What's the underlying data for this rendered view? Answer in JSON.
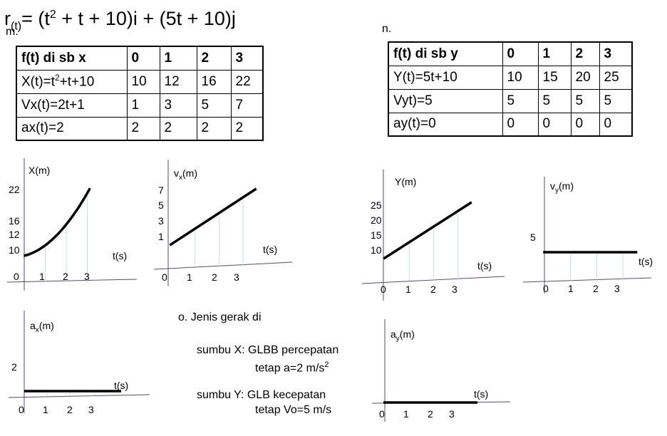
{
  "title": {
    "prefix": "r",
    "sub": "(t)",
    "eq": "= (t",
    "sup": "2",
    "rest": " + t + 10)i + (5t + 10)j"
  },
  "labels": {
    "m": "m.",
    "n": "n."
  },
  "table_x": {
    "header": [
      "f(t) di sb x",
      "0",
      "1",
      "2",
      "3"
    ],
    "rows": [
      {
        "label_main": "X(t)=t",
        "label_sup": "2",
        "label_rest": "+t+10",
        "values": [
          "10",
          "12",
          "16",
          "22"
        ]
      },
      {
        "label": "Vx(t)=2t+1",
        "values": [
          "1",
          "3",
          "5",
          "7"
        ]
      },
      {
        "label": "ax(t)=2",
        "values": [
          "2",
          "2",
          "2",
          "2"
        ]
      }
    ]
  },
  "table_y": {
    "header": [
      "f(t) di sb y",
      "0",
      "1",
      "2",
      "3"
    ],
    "rows": [
      {
        "label": "Y(t)=5t+10",
        "values": [
          "10",
          "15",
          "20",
          "25"
        ]
      },
      {
        "label": "Vyt)=5",
        "values": [
          "5",
          "5",
          "5",
          "5"
        ]
      },
      {
        "label": "ay(t)=0",
        "values": [
          "0",
          "0",
          "0",
          "0"
        ]
      }
    ]
  },
  "plots": {
    "x": {
      "ylabel": "X(m)",
      "xlabel": "t(s)",
      "t": [
        0,
        1,
        2,
        3
      ],
      "values": [
        10,
        12,
        16,
        22
      ],
      "yticks": [
        "22",
        "16",
        "12",
        "10"
      ],
      "xticks": [
        "0",
        "1",
        "2",
        "3"
      ]
    },
    "vx": {
      "ylabel_main": "v",
      "ylabel_sub": "x",
      "ylabel_rest": "(m)",
      "xlabel": "t(s)",
      "t": [
        0,
        1,
        2,
        3
      ],
      "values": [
        1,
        3,
        5,
        7
      ],
      "yticks": [
        "7",
        "5",
        "3",
        "1"
      ],
      "xticks": [
        "0",
        "1",
        "2",
        "3"
      ]
    },
    "y": {
      "ylabel": "Y(m)",
      "xlabel": "t(s)",
      "t": [
        0,
        1,
        2,
        3
      ],
      "values": [
        10,
        15,
        20,
        25
      ],
      "yticks": [
        "25",
        "20",
        "15",
        "10"
      ],
      "xticks": [
        "0",
        "1",
        "2",
        "3"
      ]
    },
    "vy": {
      "ylabel_main": "v",
      "ylabel_sub": "y",
      "ylabel_rest": "(m)",
      "xlabel": "t(s)",
      "t": [
        0,
        1,
        2,
        3
      ],
      "values": [
        5,
        5,
        5,
        5
      ],
      "yticks": [
        "5"
      ],
      "xticks": [
        "0",
        "1",
        "2",
        "3"
      ]
    },
    "ax": {
      "ylabel_main": "a",
      "ylabel_sub": "x",
      "ylabel_rest": "(m)",
      "xlabel": "t(s)",
      "t": [
        0,
        1,
        2,
        3
      ],
      "values": [
        2,
        2,
        2,
        2
      ],
      "yticks": [
        "2"
      ],
      "xticks": [
        "0",
        "1",
        "2",
        "3"
      ]
    },
    "ay": {
      "ylabel_main": "a",
      "ylabel_sub": "y",
      "ylabel_rest": "(m)",
      "xlabel": "t(s)",
      "t": [
        0,
        1,
        2,
        3
      ],
      "values": [
        0,
        0,
        0,
        0
      ],
      "yticks": [],
      "xticks": [
        "0",
        "1",
        "2",
        "3"
      ]
    }
  },
  "motion": {
    "heading": "o. Jenis gerak  di",
    "x_line1": "sumbu X: GLBB percepatan",
    "x_line2_main": "tetap  a=2 m/s",
    "x_line2_sup": "2",
    "y_line1": "sumbu Y: GLB kecepatan",
    "y_line2": "tetap  Vo=5 m/s"
  }
}
